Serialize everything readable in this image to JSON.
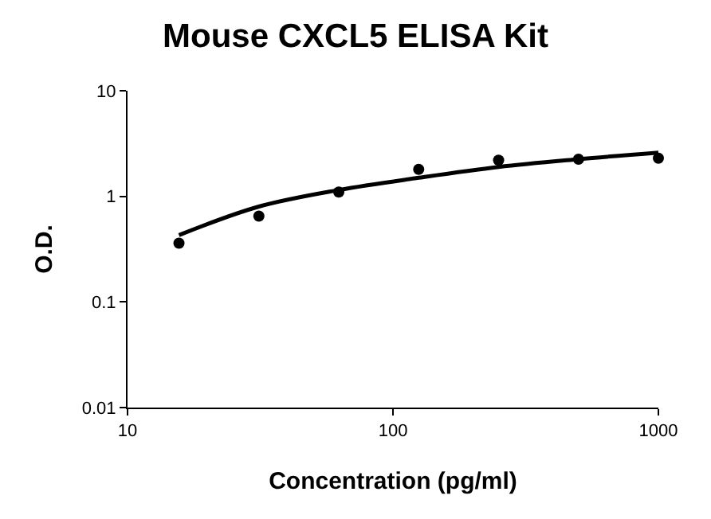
{
  "chart_data": {
    "type": "scatter",
    "title": "Mouse CXCL5 ELISA Kit",
    "xlabel": "Concentration (pg/ml)",
    "ylabel": "O.D.",
    "log": "xy",
    "grid": false,
    "xlim": [
      10,
      1000
    ],
    "xticks": [
      10,
      100,
      1000
    ],
    "ylim": [
      0.01,
      10
    ],
    "yticks": [
      0.01,
      0.1,
      1,
      10
    ],
    "x": [
      15.625,
      31.25,
      62.5,
      125,
      250,
      500,
      1000
    ],
    "series": [
      {
        "marker": "circle",
        "color": "#000000",
        "values": [
          0.36,
          0.65,
          1.1,
          1.8,
          2.2,
          2.25,
          2.3
        ]
      },
      {
        "type": "line",
        "marker": "none",
        "color": "#000000",
        "x": [
          15.625,
          31.25,
          62.5,
          125,
          250,
          500,
          1000
        ],
        "values": [
          0.43,
          0.8,
          1.15,
          1.5,
          1.9,
          2.25,
          2.6
        ]
      }
    ]
  }
}
